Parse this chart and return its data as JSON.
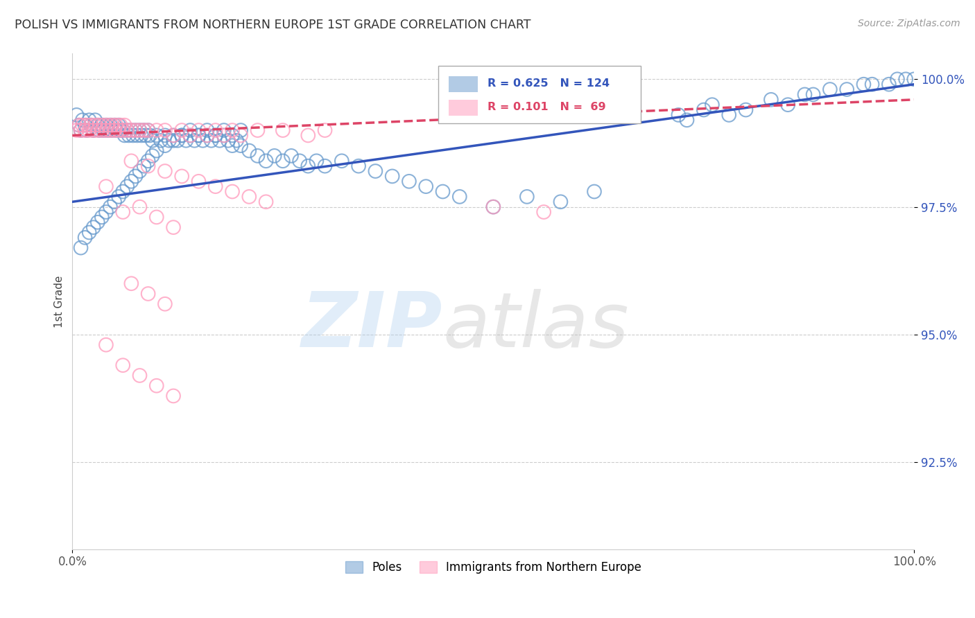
{
  "title": "POLISH VS IMMIGRANTS FROM NORTHERN EUROPE 1ST GRADE CORRELATION CHART",
  "source_text": "Source: ZipAtlas.com",
  "ylabel": "1st Grade",
  "background_color": "#ffffff",
  "blue_color": "#6699cc",
  "pink_color": "#ff99bb",
  "blue_line_color": "#3355bb",
  "pink_line_color": "#dd4466",
  "legend_label_blue": "Poles",
  "legend_label_pink": "Immigrants from Northern Europe",
  "xmin": 0.0,
  "xmax": 1.0,
  "ymin": 0.908,
  "ymax": 1.005,
  "ytick_labels": [
    "92.5%",
    "95.0%",
    "97.5%",
    "100.0%"
  ],
  "ytick_values": [
    0.925,
    0.95,
    0.975,
    1.0
  ],
  "blue_trend_y_start": 0.976,
  "blue_trend_y_end": 0.999,
  "pink_trend_y_start": 0.989,
  "pink_trend_y_end": 0.996,
  "blue_scatter_x": [
    0.005,
    0.008,
    0.01,
    0.012,
    0.015,
    0.017,
    0.02,
    0.022,
    0.025,
    0.027,
    0.03,
    0.032,
    0.035,
    0.037,
    0.04,
    0.042,
    0.045,
    0.047,
    0.05,
    0.052,
    0.055,
    0.057,
    0.06,
    0.062,
    0.065,
    0.067,
    0.07,
    0.072,
    0.075,
    0.077,
    0.08,
    0.082,
    0.085,
    0.087,
    0.09,
    0.092,
    0.095,
    0.1,
    0.105,
    0.11,
    0.115,
    0.12,
    0.125,
    0.13,
    0.135,
    0.14,
    0.145,
    0.15,
    0.155,
    0.16,
    0.165,
    0.17,
    0.175,
    0.18,
    0.185,
    0.19,
    0.195,
    0.2,
    0.21,
    0.22,
    0.23,
    0.24,
    0.25,
    0.26,
    0.27,
    0.28,
    0.29,
    0.3,
    0.32,
    0.34,
    0.36,
    0.38,
    0.4,
    0.42,
    0.44,
    0.46,
    0.5,
    0.54,
    0.58,
    0.62,
    0.72,
    0.73,
    0.75,
    0.76,
    0.78,
    0.8,
    0.83,
    0.85,
    0.87,
    0.88,
    0.9,
    0.92,
    0.94,
    0.95,
    0.97,
    0.98,
    0.99,
    1.0,
    0.01,
    0.015,
    0.02,
    0.025,
    0.03,
    0.035,
    0.04,
    0.045,
    0.05,
    0.055,
    0.06,
    0.065,
    0.07,
    0.075,
    0.08,
    0.085,
    0.09,
    0.095,
    0.1,
    0.11,
    0.12,
    0.13,
    0.14,
    0.15,
    0.16,
    0.17,
    0.18,
    0.19,
    0.2
  ],
  "blue_scatter_y": [
    0.993,
    0.991,
    0.99,
    0.992,
    0.991,
    0.99,
    0.992,
    0.991,
    0.99,
    0.992,
    0.991,
    0.99,
    0.991,
    0.99,
    0.991,
    0.99,
    0.991,
    0.99,
    0.991,
    0.99,
    0.991,
    0.99,
    0.99,
    0.989,
    0.99,
    0.989,
    0.99,
    0.989,
    0.99,
    0.989,
    0.99,
    0.989,
    0.99,
    0.989,
    0.99,
    0.989,
    0.988,
    0.989,
    0.988,
    0.989,
    0.988,
    0.989,
    0.988,
    0.989,
    0.988,
    0.989,
    0.988,
    0.989,
    0.988,
    0.989,
    0.988,
    0.989,
    0.988,
    0.989,
    0.988,
    0.987,
    0.988,
    0.987,
    0.986,
    0.985,
    0.984,
    0.985,
    0.984,
    0.985,
    0.984,
    0.983,
    0.984,
    0.983,
    0.984,
    0.983,
    0.982,
    0.981,
    0.98,
    0.979,
    0.978,
    0.977,
    0.975,
    0.977,
    0.976,
    0.978,
    0.993,
    0.992,
    0.994,
    0.995,
    0.993,
    0.994,
    0.996,
    0.995,
    0.997,
    0.997,
    0.998,
    0.998,
    0.999,
    0.999,
    0.999,
    1.0,
    1.0,
    1.0,
    0.967,
    0.969,
    0.97,
    0.971,
    0.972,
    0.973,
    0.974,
    0.975,
    0.976,
    0.977,
    0.978,
    0.979,
    0.98,
    0.981,
    0.982,
    0.983,
    0.984,
    0.985,
    0.986,
    0.987,
    0.988,
    0.989,
    0.99,
    0.989,
    0.99,
    0.989,
    0.99,
    0.989,
    0.99
  ],
  "pink_scatter_x": [
    0.005,
    0.008,
    0.01,
    0.012,
    0.015,
    0.017,
    0.02,
    0.022,
    0.025,
    0.027,
    0.03,
    0.032,
    0.035,
    0.037,
    0.04,
    0.042,
    0.045,
    0.047,
    0.05,
    0.052,
    0.055,
    0.057,
    0.06,
    0.062,
    0.065,
    0.07,
    0.075,
    0.08,
    0.085,
    0.09,
    0.1,
    0.11,
    0.12,
    0.13,
    0.14,
    0.15,
    0.16,
    0.17,
    0.18,
    0.19,
    0.2,
    0.22,
    0.25,
    0.28,
    0.3,
    0.1,
    0.12,
    0.08,
    0.06,
    0.04,
    0.07,
    0.09,
    0.11,
    0.13,
    0.15,
    0.17,
    0.19,
    0.21,
    0.23,
    0.07,
    0.09,
    0.11,
    0.5,
    0.56,
    0.04,
    0.06,
    0.08,
    0.1,
    0.12
  ],
  "pink_scatter_y": [
    0.99,
    0.991,
    0.99,
    0.991,
    0.99,
    0.991,
    0.99,
    0.991,
    0.99,
    0.991,
    0.99,
    0.991,
    0.99,
    0.991,
    0.99,
    0.991,
    0.99,
    0.991,
    0.99,
    0.991,
    0.99,
    0.991,
    0.99,
    0.991,
    0.99,
    0.99,
    0.99,
    0.99,
    0.99,
    0.99,
    0.99,
    0.99,
    0.989,
    0.99,
    0.989,
    0.99,
    0.989,
    0.99,
    0.989,
    0.99,
    0.989,
    0.99,
    0.99,
    0.989,
    0.99,
    0.973,
    0.971,
    0.975,
    0.974,
    0.979,
    0.984,
    0.983,
    0.982,
    0.981,
    0.98,
    0.979,
    0.978,
    0.977,
    0.976,
    0.96,
    0.958,
    0.956,
    0.975,
    0.974,
    0.948,
    0.944,
    0.942,
    0.94,
    0.938
  ]
}
